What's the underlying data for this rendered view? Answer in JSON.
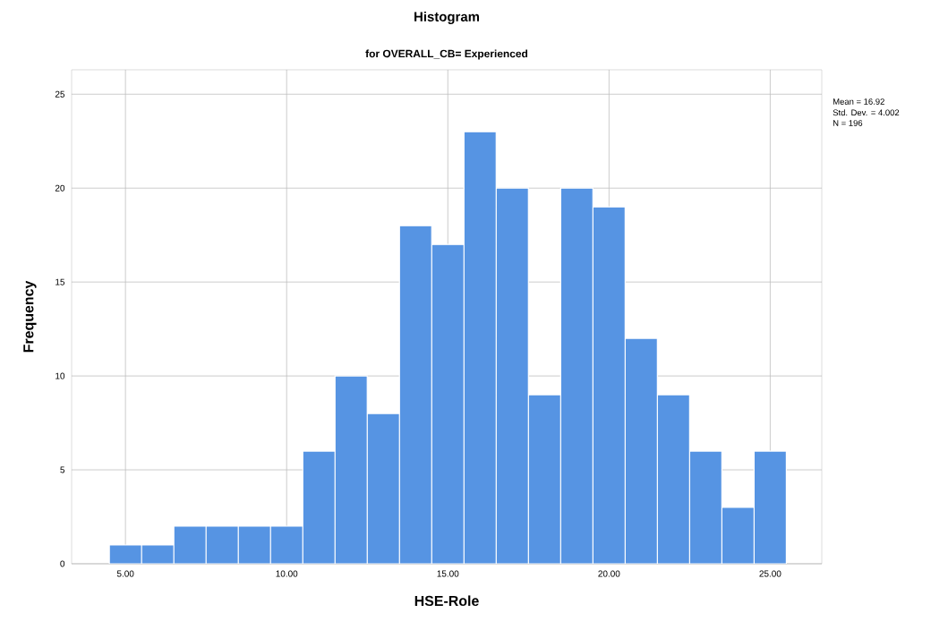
{
  "chart_data": {
    "type": "histogram",
    "title": "Histogram",
    "subtitle": "for OVERALL_CB= Experienced",
    "xlabel": "HSE-Role",
    "ylabel": "Frequency",
    "bins": [
      4.5,
      5.5,
      6.5,
      7.5,
      8.5,
      9.5,
      10.5,
      11.5,
      12.5,
      13.5,
      14.5,
      15.5,
      16.5,
      17.5,
      18.5,
      19.5,
      20.5,
      21.5,
      22.5,
      23.5,
      24.5,
      25.5
    ],
    "values": [
      1,
      1,
      2,
      2,
      2,
      2,
      6,
      10,
      8,
      18,
      17,
      23,
      20,
      9,
      20,
      19,
      12,
      9,
      6,
      3,
      6
    ],
    "color": "#5694e3",
    "xlim": [
      3.33,
      26.6
    ],
    "ylim": [
      0,
      26.3
    ],
    "xticks": [
      {
        "value": 5,
        "label": "5.00"
      },
      {
        "value": 10,
        "label": "10.00"
      },
      {
        "value": 15,
        "label": "15.00"
      },
      {
        "value": 20,
        "label": "20.00"
      },
      {
        "value": 25,
        "label": "25.00"
      }
    ],
    "yticks": [
      0,
      5,
      10,
      15,
      20,
      25
    ],
    "grid": true,
    "annotations": [
      "Mean = 16.92",
      "Std. Dev. = 4.002",
      "N = 196"
    ]
  }
}
